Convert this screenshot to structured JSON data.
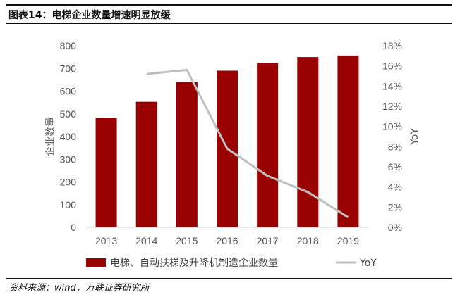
{
  "figure": {
    "title": "图表14：电梯企业数量增速明显放缓",
    "source": "资料来源：wind，万联证券研究所"
  },
  "chart_data": {
    "type": "bar",
    "categories": [
      "2013",
      "2014",
      "2015",
      "2016",
      "2017",
      "2018",
      "2019"
    ],
    "series": [
      {
        "name": "电梯、自动扶梯及升降机制造企业数量",
        "type": "bar",
        "axis": "left",
        "values": [
          482,
          553,
          640,
          690,
          725,
          750,
          757
        ]
      },
      {
        "name": "YoY",
        "type": "line",
        "axis": "right",
        "values": [
          null,
          0.152,
          0.156,
          0.078,
          0.051,
          0.035,
          0.01
        ]
      }
    ],
    "ylabel": "企业数量",
    "y2label": "YoY",
    "ylim": [
      0,
      800
    ],
    "yticks": [
      "0",
      "100",
      "200",
      "300",
      "400",
      "500",
      "600",
      "700",
      "800"
    ],
    "y2lim": [
      0,
      0.18
    ],
    "y2ticks": [
      "0%",
      "2%",
      "4%",
      "6%",
      "8%",
      "10%",
      "12%",
      "14%",
      "16%",
      "18%"
    ],
    "grid": false,
    "legend": "bottom",
    "colors": {
      "bar": "#990000",
      "line": "#bfbfbf"
    }
  }
}
